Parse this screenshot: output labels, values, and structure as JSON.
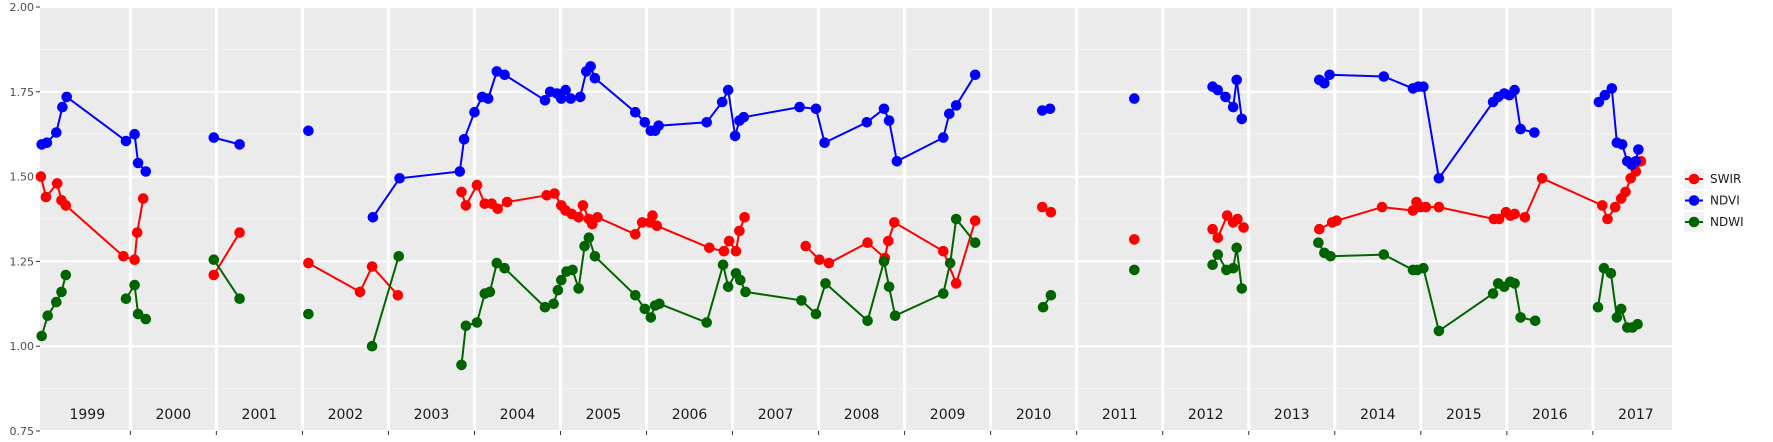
{
  "chart_data": {
    "type": "line",
    "title": "",
    "xlabel": "",
    "ylabel": "",
    "ylim": [
      0.75,
      2.0
    ],
    "xlim": [
      1998.95,
      2017.92
    ],
    "grid": true,
    "legend_position": "right",
    "y_ticks": [
      "0.75",
      "1.00",
      "1.25",
      "1.50",
      "1.75",
      "2.00"
    ],
    "x_ticks": [
      "1999",
      "2000",
      "2001",
      "2002",
      "2003",
      "2004",
      "2005",
      "2006",
      "2007",
      "2008",
      "2009",
      "2010",
      "2011",
      "2012",
      "2013",
      "2014",
      "2015",
      "2016",
      "2017"
    ],
    "series": [
      {
        "name": "SWIR",
        "color": "#ff0000",
        "points": [
          [
            1998.96,
            1.5
          ],
          [
            1999.02,
            1.44
          ],
          [
            1999.15,
            1.48
          ],
          [
            1999.2,
            1.43
          ],
          [
            1999.25,
            1.415
          ],
          [
            1999.92,
            1.265
          ],
          [
            2000.05,
            1.255
          ],
          [
            2000.08,
            1.335
          ],
          [
            2000.15,
            1.435
          ],
          [
            2000.97,
            1.21
          ],
          [
            2001.27,
            1.335
          ],
          [
            2002.07,
            1.245
          ],
          [
            2002.67,
            1.16
          ],
          [
            2002.81,
            1.235
          ],
          [
            2003.11,
            1.15
          ],
          [
            2003.85,
            1.455
          ],
          [
            2003.9,
            1.415
          ],
          [
            2004.03,
            1.475
          ],
          [
            2004.12,
            1.42
          ],
          [
            2004.2,
            1.42
          ],
          [
            2004.27,
            1.405
          ],
          [
            2004.38,
            1.425
          ],
          [
            2004.84,
            1.445
          ],
          [
            2004.93,
            1.45
          ],
          [
            2005.01,
            1.415
          ],
          [
            2005.06,
            1.4
          ],
          [
            2005.13,
            1.39
          ],
          [
            2005.21,
            1.38
          ],
          [
            2005.26,
            1.415
          ],
          [
            2005.33,
            1.375
          ],
          [
            2005.37,
            1.36
          ],
          [
            2005.43,
            1.38
          ],
          [
            2005.87,
            1.33
          ],
          [
            2005.95,
            1.365
          ],
          [
            2006.04,
            1.365
          ],
          [
            2006.07,
            1.385
          ],
          [
            2006.12,
            1.355
          ],
          [
            2006.73,
            1.29
          ],
          [
            2006.9,
            1.28
          ],
          [
            2006.96,
            1.31
          ],
          [
            2007.04,
            1.28
          ],
          [
            2007.08,
            1.34
          ],
          [
            2007.14,
            1.38
          ],
          [
            2007.85,
            1.295
          ],
          [
            2008.01,
            1.255
          ],
          [
            2008.12,
            1.245
          ],
          [
            2008.57,
            1.305
          ],
          [
            2008.77,
            1.26
          ],
          [
            2008.81,
            1.31
          ],
          [
            2008.88,
            1.365
          ],
          [
            2009.45,
            1.28
          ],
          [
            2009.6,
            1.185
          ],
          [
            2009.82,
            1.37
          ],
          [
            2010.6,
            1.41
          ],
          [
            2010.7,
            1.395
          ],
          [
            2011.67,
            1.315
          ],
          [
            2012.58,
            1.345
          ],
          [
            2012.64,
            1.32
          ],
          [
            2012.75,
            1.385
          ],
          [
            2012.82,
            1.365
          ],
          [
            2012.87,
            1.375
          ],
          [
            2012.94,
            1.35
          ],
          [
            2013.82,
            1.345
          ],
          [
            2013.97,
            1.365
          ],
          [
            2014.02,
            1.37
          ],
          [
            2014.55,
            1.41
          ],
          [
            2014.91,
            1.4
          ],
          [
            2014.95,
            1.425
          ],
          [
            2015.0,
            1.41
          ],
          [
            2015.06,
            1.41
          ],
          [
            2015.21,
            1.41
          ],
          [
            2015.85,
            1.375
          ],
          [
            2015.91,
            1.375
          ],
          [
            2015.99,
            1.395
          ],
          [
            2016.04,
            1.385
          ],
          [
            2016.09,
            1.39
          ],
          [
            2016.21,
            1.38
          ],
          [
            2016.41,
            1.495
          ],
          [
            2017.11,
            1.415
          ],
          [
            2017.17,
            1.375
          ],
          [
            2017.26,
            1.41
          ],
          [
            2017.33,
            1.435
          ],
          [
            2017.38,
            1.455
          ],
          [
            2017.44,
            1.495
          ],
          [
            2017.5,
            1.515
          ],
          [
            2017.56,
            1.545
          ]
        ]
      },
      {
        "name": "NDVI",
        "color": "#0000ff",
        "points": [
          [
            1998.97,
            1.595
          ],
          [
            1999.03,
            1.6
          ],
          [
            1999.14,
            1.63
          ],
          [
            1999.21,
            1.705
          ],
          [
            1999.26,
            1.735
          ],
          [
            1999.95,
            1.605
          ],
          [
            2000.05,
            1.625
          ],
          [
            2000.09,
            1.54
          ],
          [
            2000.18,
            1.515
          ],
          [
            2000.97,
            1.615
          ],
          [
            2001.27,
            1.595
          ],
          [
            2002.07,
            1.635
          ],
          [
            2002.82,
            1.38
          ],
          [
            2003.13,
            1.495
          ],
          [
            2003.83,
            1.515
          ],
          [
            2003.88,
            1.61
          ],
          [
            2004.0,
            1.69
          ],
          [
            2004.09,
            1.735
          ],
          [
            2004.16,
            1.73
          ],
          [
            2004.26,
            1.81
          ],
          [
            2004.35,
            1.8
          ],
          [
            2004.82,
            1.725
          ],
          [
            2004.88,
            1.75
          ],
          [
            2004.96,
            1.745
          ],
          [
            2005.01,
            1.73
          ],
          [
            2005.06,
            1.755
          ],
          [
            2005.12,
            1.73
          ],
          [
            2005.23,
            1.735
          ],
          [
            2005.3,
            1.81
          ],
          [
            2005.35,
            1.825
          ],
          [
            2005.4,
            1.79
          ],
          [
            2005.87,
            1.69
          ],
          [
            2005.98,
            1.66
          ],
          [
            2006.05,
            1.635
          ],
          [
            2006.1,
            1.635
          ],
          [
            2006.14,
            1.65
          ],
          [
            2006.7,
            1.66
          ],
          [
            2006.88,
            1.72
          ],
          [
            2006.95,
            1.755
          ],
          [
            2007.03,
            1.62
          ],
          [
            2007.08,
            1.665
          ],
          [
            2007.13,
            1.675
          ],
          [
            2007.78,
            1.705
          ],
          [
            2007.97,
            1.7
          ],
          [
            2008.07,
            1.6
          ],
          [
            2008.56,
            1.66
          ],
          [
            2008.76,
            1.7
          ],
          [
            2008.82,
            1.665
          ],
          [
            2008.91,
            1.545
          ],
          [
            2009.45,
            1.615
          ],
          [
            2009.52,
            1.685
          ],
          [
            2009.6,
            1.71
          ],
          [
            2009.82,
            1.8
          ],
          [
            2010.6,
            1.695
          ],
          [
            2010.69,
            1.7
          ],
          [
            2011.67,
            1.73
          ],
          [
            2012.58,
            1.765
          ],
          [
            2012.64,
            1.755
          ],
          [
            2012.73,
            1.735
          ],
          [
            2012.82,
            1.705
          ],
          [
            2012.86,
            1.785
          ],
          [
            2012.92,
            1.67
          ],
          [
            2013.82,
            1.785
          ],
          [
            2013.88,
            1.775
          ],
          [
            2013.94,
            1.8
          ],
          [
            2014.57,
            1.795
          ],
          [
            2014.91,
            1.76
          ],
          [
            2014.97,
            1.765
          ],
          [
            2015.03,
            1.765
          ],
          [
            2015.21,
            1.495
          ],
          [
            2015.84,
            1.72
          ],
          [
            2015.9,
            1.735
          ],
          [
            2015.97,
            1.745
          ],
          [
            2016.03,
            1.74
          ],
          [
            2016.09,
            1.755
          ],
          [
            2016.16,
            1.64
          ],
          [
            2016.32,
            1.63
          ],
          [
            2017.07,
            1.72
          ],
          [
            2017.14,
            1.74
          ],
          [
            2017.22,
            1.76
          ],
          [
            2017.28,
            1.6
          ],
          [
            2017.34,
            1.595
          ],
          [
            2017.4,
            1.545
          ],
          [
            2017.45,
            1.535
          ],
          [
            2017.5,
            1.545
          ],
          [
            2017.53,
            1.58
          ]
        ]
      },
      {
        "name": "NDWI",
        "color": "#006400",
        "points": [
          [
            1998.97,
            1.03
          ],
          [
            1999.04,
            1.09
          ],
          [
            1999.14,
            1.13
          ],
          [
            1999.2,
            1.16
          ],
          [
            1999.25,
            1.21
          ],
          [
            1999.95,
            1.14
          ],
          [
            2000.05,
            1.18
          ],
          [
            2000.09,
            1.095
          ],
          [
            2000.18,
            1.08
          ],
          [
            2000.97,
            1.255
          ],
          [
            2001.27,
            1.14
          ],
          [
            2002.07,
            1.095
          ],
          [
            2002.81,
            1.0
          ],
          [
            2003.12,
            1.265
          ],
          [
            2003.85,
            0.945
          ],
          [
            2003.9,
            1.06
          ],
          [
            2004.03,
            1.07
          ],
          [
            2004.12,
            1.155
          ],
          [
            2004.18,
            1.16
          ],
          [
            2004.26,
            1.245
          ],
          [
            2004.35,
            1.23
          ],
          [
            2004.82,
            1.115
          ],
          [
            2004.92,
            1.125
          ],
          [
            2004.97,
            1.165
          ],
          [
            2005.01,
            1.195
          ],
          [
            2005.07,
            1.22
          ],
          [
            2005.14,
            1.225
          ],
          [
            2005.21,
            1.17
          ],
          [
            2005.28,
            1.295
          ],
          [
            2005.33,
            1.32
          ],
          [
            2005.4,
            1.265
          ],
          [
            2005.87,
            1.15
          ],
          [
            2005.98,
            1.11
          ],
          [
            2006.05,
            1.085
          ],
          [
            2006.1,
            1.12
          ],
          [
            2006.15,
            1.125
          ],
          [
            2006.7,
            1.07
          ],
          [
            2006.89,
            1.24
          ],
          [
            2006.95,
            1.175
          ],
          [
            2007.04,
            1.215
          ],
          [
            2007.09,
            1.195
          ],
          [
            2007.15,
            1.16
          ],
          [
            2007.8,
            1.135
          ],
          [
            2007.97,
            1.095
          ],
          [
            2008.08,
            1.185
          ],
          [
            2008.57,
            1.075
          ],
          [
            2008.76,
            1.25
          ],
          [
            2008.82,
            1.175
          ],
          [
            2008.89,
            1.09
          ],
          [
            2009.45,
            1.155
          ],
          [
            2009.53,
            1.245
          ],
          [
            2009.6,
            1.375
          ],
          [
            2009.82,
            1.305
          ],
          [
            2010.61,
            1.115
          ],
          [
            2010.7,
            1.15
          ],
          [
            2011.67,
            1.225
          ],
          [
            2012.58,
            1.24
          ],
          [
            2012.64,
            1.27
          ],
          [
            2012.74,
            1.225
          ],
          [
            2012.82,
            1.23
          ],
          [
            2012.86,
            1.29
          ],
          [
            2012.92,
            1.17
          ],
          [
            2013.81,
            1.305
          ],
          [
            2013.88,
            1.275
          ],
          [
            2013.95,
            1.265
          ],
          [
            2014.57,
            1.27
          ],
          [
            2014.91,
            1.225
          ],
          [
            2014.96,
            1.225
          ],
          [
            2015.03,
            1.23
          ],
          [
            2015.21,
            1.045
          ],
          [
            2015.84,
            1.155
          ],
          [
            2015.9,
            1.185
          ],
          [
            2015.97,
            1.175
          ],
          [
            2016.04,
            1.19
          ],
          [
            2016.09,
            1.185
          ],
          [
            2016.16,
            1.085
          ],
          [
            2016.33,
            1.075
          ],
          [
            2017.06,
            1.115
          ],
          [
            2017.13,
            1.23
          ],
          [
            2017.21,
            1.215
          ],
          [
            2017.28,
            1.085
          ],
          [
            2017.33,
            1.11
          ],
          [
            2017.4,
            1.055
          ],
          [
            2017.46,
            1.055
          ],
          [
            2017.52,
            1.065
          ]
        ]
      }
    ]
  }
}
